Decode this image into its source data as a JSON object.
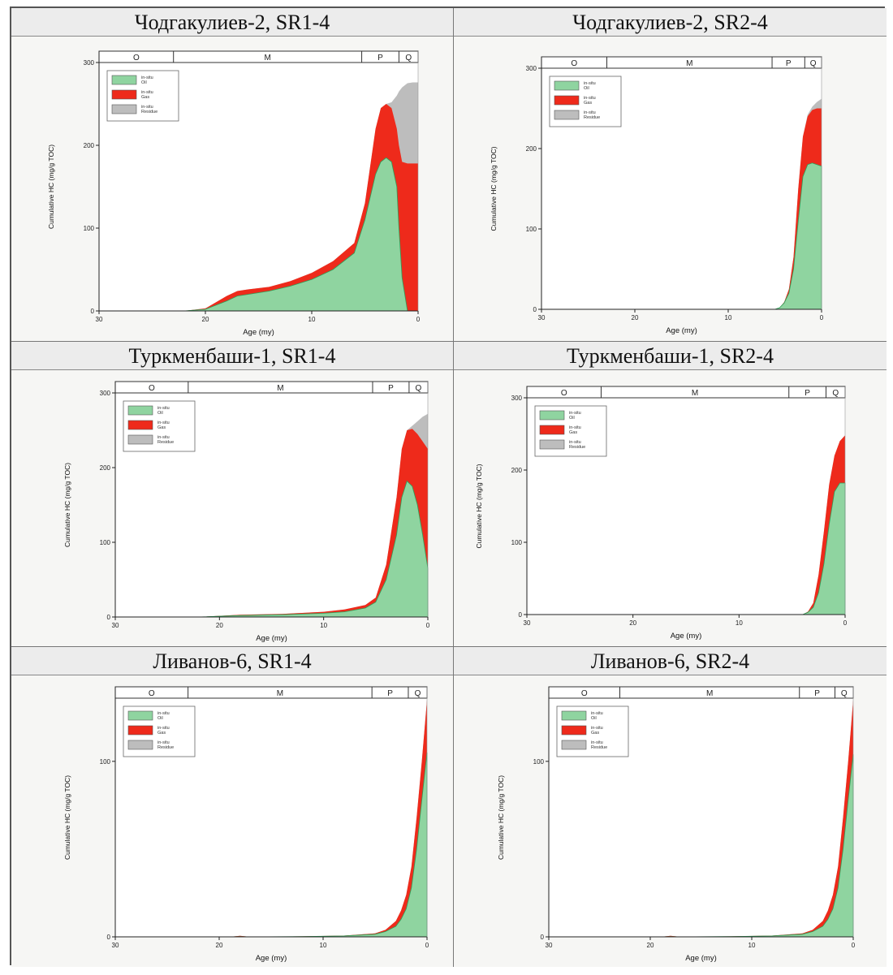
{
  "panels": [
    {
      "title": "Чодгакулиев-2, SR1-4"
    },
    {
      "title": "Чодгакулиев-2, SR2-4"
    },
    {
      "title": "Туркменбаши-1, SR1-4"
    },
    {
      "title": "Туркменбаши-1, SR2-4"
    },
    {
      "title": "Ливанов-6, SR1-4"
    },
    {
      "title": "Ливанов-6, SR2-4"
    }
  ],
  "colors": {
    "oil": "#8fd4a0",
    "gas": "#ee2a1b",
    "residue": "#bdbdbd",
    "oil_edge": "#2e9e58"
  },
  "chart_data": [
    {
      "type": "area",
      "title": "Чодгакулиев-2, SR1-4",
      "xlabel": "Age (my)",
      "ylabel": "Cumulative HC (mg/g TOC)",
      "xlim": [
        30,
        0
      ],
      "ylim": [
        0,
        300
      ],
      "xticks": [
        30,
        20,
        10,
        0
      ],
      "yticks": [
        0,
        100,
        200,
        300
      ],
      "periods": [
        {
          "label": "O",
          "from": 30,
          "to": 23
        },
        {
          "label": "M",
          "from": 23,
          "to": 5.3
        },
        {
          "label": "P",
          "from": 5.3,
          "to": 1.8
        },
        {
          "label": "Q",
          "from": 1.8,
          "to": 0
        }
      ],
      "legend": [
        {
          "line1": "in-situ",
          "line2": "Oil"
        },
        {
          "line1": "in-situ",
          "line2": "Gas"
        },
        {
          "line1": "in-situ",
          "line2": "Residue"
        }
      ],
      "x": [
        22,
        20,
        18,
        17,
        16,
        14,
        12,
        10,
        8,
        6,
        5,
        4,
        3.5,
        3,
        2.5,
        2,
        1.8,
        1.5,
        1,
        0.5,
        0
      ],
      "series": [
        {
          "name": "Oil",
          "values": [
            0,
            2,
            12,
            18,
            20,
            24,
            30,
            38,
            50,
            70,
            110,
            165,
            180,
            185,
            180,
            150,
            100,
            40,
            0,
            0,
            0
          ]
        },
        {
          "name": "Gas",
          "values": [
            0,
            3,
            18,
            24,
            26,
            29,
            36,
            46,
            60,
            82,
            130,
            220,
            245,
            250,
            245,
            220,
            200,
            180,
            178,
            178,
            178
          ]
        },
        {
          "name": "Residue",
          "values": [
            0,
            3,
            18,
            24,
            26,
            29,
            36,
            46,
            60,
            82,
            130,
            220,
            245,
            250,
            252,
            260,
            265,
            270,
            275,
            276,
            276
          ]
        }
      ]
    },
    {
      "type": "area",
      "title": "Чодгакулиев-2, SR2-4",
      "xlabel": "Age (my)",
      "ylabel": "Cumulative HC (mg/g TOC)",
      "xlim": [
        30,
        0
      ],
      "ylim": [
        0,
        300
      ],
      "xticks": [
        30,
        20,
        10,
        0
      ],
      "yticks": [
        0,
        100,
        200,
        300
      ],
      "periods": [
        {
          "label": "O",
          "from": 30,
          "to": 23
        },
        {
          "label": "M",
          "from": 23,
          "to": 5.3
        },
        {
          "label": "P",
          "from": 5.3,
          "to": 1.8
        },
        {
          "label": "Q",
          "from": 1.8,
          "to": 0
        }
      ],
      "legend": [
        {
          "line1": "in-situ",
          "line2": "Oil"
        },
        {
          "line1": "in-situ",
          "line2": "Gas"
        },
        {
          "line1": "in-situ",
          "line2": "Residue"
        }
      ],
      "x": [
        5,
        4.5,
        4,
        3.5,
        3,
        2.5,
        2,
        1.5,
        1,
        0.5,
        0
      ],
      "series": [
        {
          "name": "Oil",
          "values": [
            0,
            2,
            8,
            20,
            50,
            110,
            165,
            180,
            182,
            180,
            178
          ]
        },
        {
          "name": "Gas",
          "values": [
            0,
            2,
            9,
            25,
            65,
            150,
            215,
            240,
            248,
            250,
            250
          ]
        },
        {
          "name": "Residue",
          "values": [
            0,
            2,
            9,
            25,
            65,
            150,
            215,
            242,
            252,
            258,
            262
          ]
        }
      ]
    },
    {
      "type": "area",
      "title": "Туркменбаши-1, SR1-4",
      "xlabel": "Age (my)",
      "ylabel": "Cumulative HC (mg/g TOC)",
      "xlim": [
        30,
        0
      ],
      "ylim": [
        0,
        300
      ],
      "xticks": [
        30,
        20,
        10,
        0
      ],
      "yticks": [
        0,
        100,
        200,
        300
      ],
      "periods": [
        {
          "label": "O",
          "from": 30,
          "to": 23
        },
        {
          "label": "M",
          "from": 23,
          "to": 5.3
        },
        {
          "label": "P",
          "from": 5.3,
          "to": 1.8
        },
        {
          "label": "Q",
          "from": 1.8,
          "to": 0
        }
      ],
      "legend": [
        {
          "line1": "in-situ",
          "line2": "Oil"
        },
        {
          "line1": "in-situ",
          "line2": "Gas"
        },
        {
          "line1": "in-situ",
          "line2": "Residue"
        }
      ],
      "x": [
        22,
        18,
        14,
        10,
        8,
        6,
        5,
        4,
        3,
        2.5,
        2,
        1.5,
        1,
        0.5,
        0
      ],
      "series": [
        {
          "name": "Oil",
          "values": [
            0,
            2,
            3,
            5,
            7,
            12,
            20,
            50,
            110,
            160,
            182,
            175,
            150,
            110,
            65
          ]
        },
        {
          "name": "Gas",
          "values": [
            0,
            3,
            4,
            7,
            10,
            16,
            26,
            70,
            160,
            225,
            250,
            252,
            245,
            235,
            225
          ]
        },
        {
          "name": "Residue",
          "values": [
            0,
            3,
            4,
            7,
            10,
            16,
            26,
            70,
            160,
            225,
            250,
            256,
            262,
            268,
            272
          ]
        }
      ]
    },
    {
      "type": "area",
      "title": "Туркменбаши-1, SR2-4",
      "xlabel": "Age (my)",
      "ylabel": "Cumulative HC (mg/g TOC)",
      "xlim": [
        30,
        0
      ],
      "ylim": [
        0,
        300
      ],
      "xticks": [
        30,
        20,
        10,
        0
      ],
      "yticks": [
        0,
        100,
        200,
        300
      ],
      "periods": [
        {
          "label": "O",
          "from": 30,
          "to": 23
        },
        {
          "label": "M",
          "from": 23,
          "to": 5.3
        },
        {
          "label": "P",
          "from": 5.3,
          "to": 1.8
        },
        {
          "label": "Q",
          "from": 1.8,
          "to": 0
        }
      ],
      "legend": [
        {
          "line1": "in-situ",
          "line2": "Oil"
        },
        {
          "line1": "in-situ",
          "line2": "Gas"
        },
        {
          "line1": "in-situ",
          "line2": "Residue"
        }
      ],
      "x": [
        4,
        3.5,
        3,
        2.5,
        2,
        1.5,
        1,
        0.5,
        0
      ],
      "series": [
        {
          "name": "Oil",
          "values": [
            0,
            3,
            10,
            30,
            70,
            125,
            170,
            182,
            182
          ]
        },
        {
          "name": "Gas",
          "values": [
            0,
            4,
            16,
            55,
            115,
            180,
            220,
            240,
            248
          ]
        },
        {
          "name": "Residue",
          "values": [
            0,
            4,
            16,
            55,
            115,
            180,
            220,
            240,
            248
          ]
        }
      ]
    },
    {
      "type": "area",
      "title": "Ливанов-6, SR1-4",
      "xlabel": "Age (my)",
      "ylabel": "Cumulative HC (mg/g TOC)",
      "xlim": [
        30,
        0
      ],
      "ylim": [
        0,
        136
      ],
      "xticks": [
        30,
        20,
        10,
        0
      ],
      "yticks": [
        0,
        100
      ],
      "periods": [
        {
          "label": "O",
          "from": 30,
          "to": 23
        },
        {
          "label": "M",
          "from": 23,
          "to": 5.3
        },
        {
          "label": "P",
          "from": 5.3,
          "to": 1.8
        },
        {
          "label": "Q",
          "from": 1.8,
          "to": 0
        }
      ],
      "legend": [
        {
          "line1": "in-situ",
          "line2": "Oil"
        },
        {
          "line1": "in-situ",
          "line2": "Gas"
        },
        {
          "line1": "in-situ",
          "line2": "Residue"
        }
      ],
      "x": [
        19,
        18,
        17,
        12,
        8,
        5,
        4,
        3,
        2.5,
        2,
        1.5,
        1,
        0.5,
        0
      ],
      "series": [
        {
          "name": "Oil",
          "values": [
            0,
            0.2,
            0,
            0.2,
            0.5,
            1.5,
            3,
            6,
            10,
            16,
            28,
            50,
            78,
            105
          ]
        },
        {
          "name": "Gas",
          "values": [
            0,
            0.6,
            0,
            0.3,
            0.7,
            2,
            4,
            9,
            15,
            24,
            40,
            68,
            100,
            135
          ]
        },
        {
          "name": "Residue",
          "values": [
            0,
            0.6,
            0,
            0.3,
            0.7,
            2,
            4,
            9,
            15,
            24,
            40,
            68,
            100,
            135
          ]
        }
      ]
    },
    {
      "type": "area",
      "title": "Ливанов-6, SR2-4",
      "xlabel": "Age (my)",
      "ylabel": "Cumulative HC (mg/g TOC)",
      "xlim": [
        30,
        0
      ],
      "ylim": [
        0,
        136
      ],
      "xticks": [
        30,
        20,
        10,
        0
      ],
      "yticks": [
        0,
        100
      ],
      "periods": [
        {
          "label": "O",
          "from": 30,
          "to": 23
        },
        {
          "label": "M",
          "from": 23,
          "to": 5.3
        },
        {
          "label": "P",
          "from": 5.3,
          "to": 1.8
        },
        {
          "label": "Q",
          "from": 1.8,
          "to": 0
        }
      ],
      "legend": [
        {
          "line1": "in-situ",
          "line2": "Oil"
        },
        {
          "line1": "in-situ",
          "line2": "Gas"
        },
        {
          "line1": "in-situ",
          "line2": "Residue"
        }
      ],
      "x": [
        19,
        18,
        17,
        12,
        8,
        5,
        4,
        3,
        2.5,
        2,
        1.5,
        1,
        0.5,
        0
      ],
      "series": [
        {
          "name": "Oil",
          "values": [
            0,
            0.2,
            0,
            0.2,
            0.5,
            1.5,
            3,
            6,
            10,
            16,
            28,
            50,
            78,
            104
          ]
        },
        {
          "name": "Gas",
          "values": [
            0,
            0.6,
            0,
            0.3,
            0.7,
            2,
            4,
            9,
            15,
            24,
            40,
            68,
            100,
            135
          ]
        },
        {
          "name": "Residue",
          "values": [
            0,
            0.6,
            0,
            0.3,
            0.7,
            2,
            4,
            9,
            15,
            24,
            40,
            68,
            100,
            135
          ]
        }
      ]
    }
  ]
}
